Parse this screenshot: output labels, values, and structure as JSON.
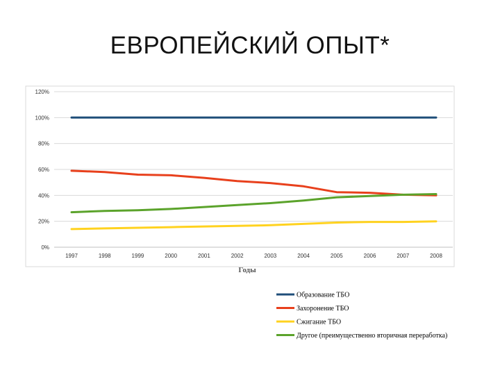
{
  "slide": {
    "title": "ЕВРОПЕЙСКИЙ ОПЫТ*"
  },
  "chart_data": {
    "type": "line",
    "title": "",
    "xlabel": "Годы",
    "ylabel": "",
    "x": [
      "1997",
      "1998",
      "1999",
      "2000",
      "2001",
      "2002",
      "2003",
      "2004",
      "2005",
      "2006",
      "2007",
      "2008"
    ],
    "ylim": [
      0,
      120
    ],
    "y_ticks": [
      "0%",
      "20%",
      "40%",
      "60%",
      "80%",
      "100%",
      "120%"
    ],
    "grid": true,
    "legend_position": "bottom-right",
    "series": [
      {
        "name": "Образование ТБО",
        "color": "#1f4e79",
        "values": [
          100,
          100,
          100,
          100,
          100,
          100,
          100,
          100,
          100,
          100,
          100,
          100
        ]
      },
      {
        "name": "Захоронение ТБО",
        "color": "#e8401c",
        "values": [
          59,
          58,
          56,
          55.5,
          53.5,
          51,
          49.5,
          47,
          42.5,
          42,
          40.5,
          40
        ]
      },
      {
        "name": "Сжигание ТБО",
        "color": "#ffd21f",
        "values": [
          14,
          14.5,
          15,
          15.5,
          16,
          16.5,
          17,
          18,
          19,
          19.5,
          19.5,
          20
        ]
      },
      {
        "name": "Другое (преимущественно вторичная переработка)",
        "color": "#5ba32b",
        "values": [
          27,
          28,
          28.5,
          29.5,
          31,
          32.5,
          34,
          36,
          38.5,
          39.5,
          40.5,
          41
        ]
      }
    ]
  }
}
